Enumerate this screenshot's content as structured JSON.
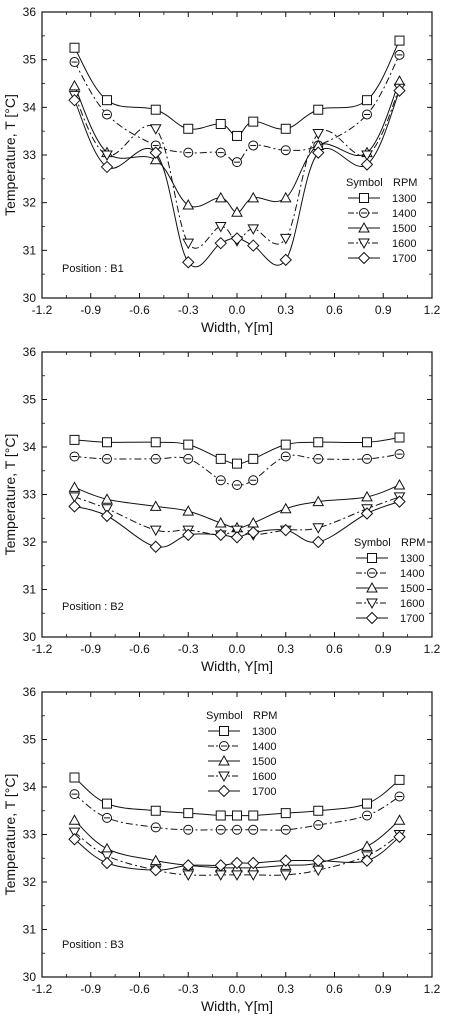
{
  "chart_data": [
    {
      "type": "line",
      "position_label": "Position : B1",
      "xlabel": "Width, Y[m]",
      "ylabel": "Temperature, T [°C]",
      "xlim": [
        -1.2,
        1.2
      ],
      "ylim": [
        30,
        36
      ],
      "xticks": [
        "-1.2",
        "-0.9",
        "-0.6",
        "-0.3",
        "0.0",
        "0.3",
        "0.6",
        "0.9",
        "1.2"
      ],
      "yticks": [
        "30",
        "31",
        "32",
        "33",
        "34",
        "35",
        "36"
      ],
      "legend": {
        "header_symbol": "Symbol",
        "header_rpm": "RPM",
        "placement": "right"
      },
      "x": [
        -1.0,
        -0.8,
        -0.5,
        -0.3,
        -0.1,
        0.0,
        0.1,
        0.3,
        0.5,
        0.8,
        1.0
      ],
      "series": [
        {
          "name": "1300",
          "marker": "square",
          "dash": "solid",
          "values": [
            35.25,
            34.15,
            33.95,
            33.55,
            33.65,
            33.4,
            33.7,
            33.55,
            33.95,
            34.15,
            35.4
          ]
        },
        {
          "name": "1400",
          "marker": "circle",
          "dash": "dashdot",
          "values": [
            34.95,
            33.85,
            33.2,
            33.05,
            33.05,
            32.85,
            33.2,
            33.1,
            33.2,
            33.85,
            35.1
          ]
        },
        {
          "name": "1500",
          "marker": "triangle-up",
          "dash": "solid",
          "values": [
            34.45,
            33.05,
            32.9,
            31.95,
            32.1,
            31.8,
            32.1,
            32.1,
            33.2,
            33.05,
            34.55
          ]
        },
        {
          "name": "1600",
          "marker": "triangle-down",
          "dash": "dashdot",
          "values": [
            34.25,
            33.0,
            33.55,
            31.15,
            31.5,
            31.2,
            31.45,
            31.25,
            33.45,
            33.0,
            34.4
          ]
        },
        {
          "name": "1700",
          "marker": "diamond",
          "dash": "solid",
          "values": [
            34.15,
            32.75,
            33.05,
            30.75,
            31.15,
            31.25,
            31.1,
            30.8,
            33.05,
            32.8,
            34.35
          ]
        }
      ]
    },
    {
      "type": "line",
      "position_label": "Position : B2",
      "xlabel": "Width, Y[m]",
      "ylabel": "Temperature, T [°C]",
      "xlim": [
        -1.2,
        1.2
      ],
      "ylim": [
        30,
        36
      ],
      "xticks": [
        "-1.2",
        "-0.9",
        "-0.6",
        "-0.3",
        "0.0",
        "0.3",
        "0.6",
        "0.9",
        "1.2"
      ],
      "yticks": [
        "30",
        "31",
        "32",
        "33",
        "34",
        "35",
        "36"
      ],
      "legend": {
        "header_symbol": "Symbol",
        "header_rpm": "RPM",
        "placement": "bottom-right"
      },
      "x": [
        -1.0,
        -0.8,
        -0.5,
        -0.3,
        -0.1,
        0.0,
        0.1,
        0.3,
        0.5,
        0.8,
        1.0
      ],
      "series": [
        {
          "name": "1300",
          "marker": "square",
          "dash": "solid",
          "values": [
            34.15,
            34.1,
            34.1,
            34.05,
            33.75,
            33.65,
            33.75,
            34.05,
            34.1,
            34.1,
            34.2
          ]
        },
        {
          "name": "1400",
          "marker": "circle",
          "dash": "dashdot",
          "values": [
            33.8,
            33.75,
            33.75,
            33.75,
            33.3,
            33.2,
            33.3,
            33.8,
            33.75,
            33.75,
            33.85
          ]
        },
        {
          "name": "1500",
          "marker": "triangle-up",
          "dash": "solid",
          "values": [
            33.15,
            32.9,
            32.75,
            32.65,
            32.4,
            32.3,
            32.4,
            32.7,
            32.85,
            32.95,
            33.2
          ]
        },
        {
          "name": "1600",
          "marker": "triangle-down",
          "dash": "dashdot",
          "values": [
            32.95,
            32.7,
            32.25,
            32.25,
            32.15,
            32.25,
            32.15,
            32.25,
            32.3,
            32.7,
            32.95
          ]
        },
        {
          "name": "1700",
          "marker": "diamond",
          "dash": "solid",
          "values": [
            32.75,
            32.55,
            31.9,
            32.15,
            32.15,
            32.1,
            32.2,
            32.25,
            32.0,
            32.6,
            32.85
          ]
        }
      ]
    },
    {
      "type": "line",
      "position_label": "Position : B3",
      "xlabel": "Width, Y[m]",
      "ylabel": "Temperature, T [°C]",
      "xlim": [
        -1.2,
        1.2
      ],
      "ylim": [
        30,
        36
      ],
      "xticks": [
        "-1.2",
        "-0.9",
        "-0.6",
        "-0.3",
        "0.0",
        "0.3",
        "0.6",
        "0.9",
        "1.2"
      ],
      "yticks": [
        "30",
        "31",
        "32",
        "33",
        "34",
        "35",
        "36"
      ],
      "legend": {
        "header_symbol": "Symbol",
        "header_rpm": "RPM",
        "placement": "top-left"
      },
      "x": [
        -1.0,
        -0.8,
        -0.5,
        -0.3,
        -0.1,
        0.0,
        0.1,
        0.3,
        0.5,
        0.8,
        1.0
      ],
      "series": [
        {
          "name": "1300",
          "marker": "square",
          "dash": "solid",
          "values": [
            34.2,
            33.65,
            33.5,
            33.45,
            33.4,
            33.4,
            33.4,
            33.45,
            33.5,
            33.65,
            34.15
          ]
        },
        {
          "name": "1400",
          "marker": "circle",
          "dash": "dashdot",
          "values": [
            33.85,
            33.35,
            33.15,
            33.1,
            33.1,
            33.1,
            33.1,
            33.1,
            33.2,
            33.4,
            33.8
          ]
        },
        {
          "name": "1500",
          "marker": "triangle-up",
          "dash": "solid",
          "values": [
            33.3,
            32.7,
            32.45,
            32.35,
            32.3,
            32.3,
            32.3,
            32.35,
            32.4,
            32.75,
            33.3
          ]
        },
        {
          "name": "1600",
          "marker": "triangle-down",
          "dash": "dashdot",
          "values": [
            33.05,
            32.55,
            32.25,
            32.15,
            32.15,
            32.15,
            32.15,
            32.15,
            32.25,
            32.55,
            33.0
          ]
        },
        {
          "name": "1700",
          "marker": "diamond",
          "dash": "solid",
          "values": [
            32.9,
            32.4,
            32.25,
            32.35,
            32.35,
            32.4,
            32.4,
            32.45,
            32.45,
            32.45,
            32.95
          ]
        }
      ]
    }
  ]
}
